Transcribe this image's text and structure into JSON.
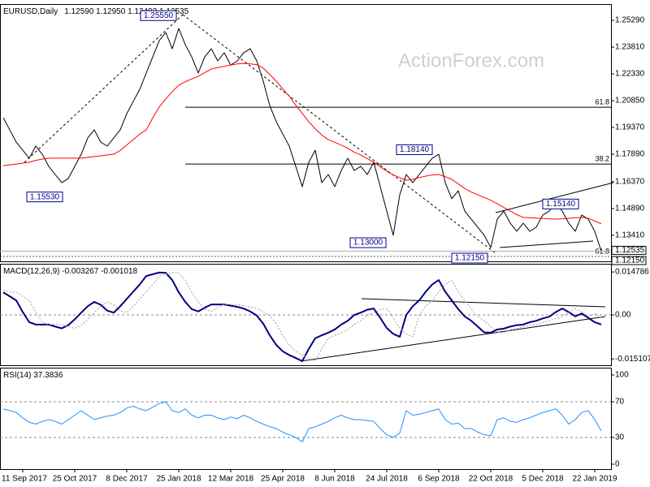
{
  "chart_data": [
    {
      "type": "line",
      "title": "EURUSD,Daily",
      "subtitle": "1.12590 1.12950 1.12492 1.12535",
      "watermark": "ActionForex.com",
      "ylim": [
        1.1197,
        1.2619
      ],
      "yticks": [
        {
          "value": 1.2529,
          "label": "1.25290"
        },
        {
          "value": 1.2381,
          "label": "1.23810"
        },
        {
          "value": 1.2233,
          "label": "1.22330"
        },
        {
          "value": 1.2085,
          "label": "1.20850"
        },
        {
          "value": 1.1937,
          "label": "1.19370"
        },
        {
          "value": 1.1789,
          "label": "1.17890"
        },
        {
          "value": 1.1637,
          "label": "1.16370"
        },
        {
          "value": 1.1489,
          "label": "1.14890"
        },
        {
          "value": 1.1341,
          "label": "1.13410"
        }
      ],
      "price_markers": [
        {
          "value": 1.12535,
          "label": "1.12535"
        },
        {
          "value": 1.1215,
          "label": "1.12150"
        }
      ],
      "annotations": [
        {
          "value": 1.2555,
          "label": "1.25550"
        },
        {
          "value": 1.1553,
          "label": "1.15530"
        },
        {
          "value": 1.13,
          "label": "1.13000"
        },
        {
          "value": 1.1215,
          "label": "1.12150"
        },
        {
          "value": 1.1814,
          "label": "1.18140"
        },
        {
          "value": 1.1514,
          "label": "1.15140"
        }
      ],
      "fib_levels": [
        {
          "value": 1.2049,
          "label": "61.8"
        },
        {
          "value": 1.1735,
          "label": "38.2"
        },
        {
          "value": 1.1224,
          "label": "61.8"
        }
      ],
      "series": [
        {
          "color": "#000000",
          "values": [
            1.1991,
            1.1924,
            1.1856,
            1.1811,
            1.1767,
            1.1834,
            1.1789,
            1.1722,
            1.1677,
            1.1632,
            1.1655,
            1.1722,
            1.1789,
            1.1879,
            1.1924,
            1.1856,
            1.1834,
            1.1879,
            1.1924,
            1.2013,
            1.2081,
            1.2148,
            1.2238,
            1.2327,
            1.2417,
            1.2462,
            1.2372,
            1.2484,
            1.2395,
            1.2327,
            1.2238,
            1.2327,
            1.2372,
            1.2305,
            1.235,
            1.2282,
            1.2305,
            1.235,
            1.2372,
            1.2305,
            1.2193,
            1.2058,
            1.1969,
            1.1901,
            1.1834,
            1.1722,
            1.161,
            1.1744,
            1.1811,
            1.1632,
            1.1677,
            1.161,
            1.1699,
            1.1767,
            1.1699,
            1.1722,
            1.1677,
            1.1744,
            1.161,
            1.1475,
            1.1341,
            1.1565,
            1.1677,
            1.1632,
            1.1677,
            1.1722,
            1.1767,
            1.1789,
            1.1632,
            1.1543,
            1.1587,
            1.1475,
            1.143,
            1.1386,
            1.1341,
            1.1273,
            1.143,
            1.1475,
            1.1408,
            1.1363,
            1.1408,
            1.1363,
            1.1386,
            1.1453,
            1.1475,
            1.152,
            1.1475,
            1.1408,
            1.1363,
            1.1453,
            1.143,
            1.1363,
            1.12535
          ]
        },
        {
          "color": "#ff0000",
          "values": [
            1.1725,
            1.173,
            1.1735,
            1.174,
            1.1745,
            1.1755,
            1.1762,
            1.1767,
            1.1767,
            1.1767,
            1.1767,
            1.1767,
            1.1767,
            1.1772,
            1.1776,
            1.178,
            1.1785,
            1.1789,
            1.181,
            1.184,
            1.187,
            1.19,
            1.1924,
            1.199,
            1.205,
            1.2095,
            1.2135,
            1.217,
            1.219,
            1.2205,
            1.222,
            1.224,
            1.226,
            1.2268,
            1.2275,
            1.2282,
            1.2288,
            1.2291,
            1.2288,
            1.2284,
            1.2265,
            1.223,
            1.2193,
            1.215,
            1.211,
            1.206,
            1.2015,
            1.1969,
            1.193,
            1.1895,
            1.187,
            1.1855,
            1.184,
            1.1822,
            1.18,
            1.1785,
            1.1765,
            1.1745,
            1.172,
            1.1695,
            1.1675,
            1.166,
            1.1645,
            1.165,
            1.166,
            1.1668,
            1.1675,
            1.1677,
            1.1665,
            1.165,
            1.1625,
            1.16,
            1.158,
            1.1565,
            1.155,
            1.1535,
            1.1515,
            1.1495,
            1.1475,
            1.1455,
            1.144,
            1.1438,
            1.1436,
            1.1434,
            1.1432,
            1.143,
            1.1432,
            1.1435,
            1.1438,
            1.144,
            1.1435,
            1.142,
            1.1405
          ]
        }
      ]
    },
    {
      "type": "line",
      "title": "MACD(12,26,9) -0.003267 -0.001018",
      "ylim": [
        -0.0173,
        0.0176
      ],
      "yticks": [
        0.014786,
        {
          "value": 0,
          "label": "0.00"
        },
        -0.015107
      ],
      "reference_lines": [
        0
      ],
      "series": [
        {
          "color": "#00007f",
          "width": 2,
          "values": [
            0.0078,
            0.0064,
            0.005,
            0.001,
            -0.0025,
            -0.0033,
            -0.0033,
            -0.0033,
            -0.004,
            -0.0046,
            -0.0035,
            -0.0015,
            0.0008,
            0.003,
            0.0045,
            0.0035,
            0.0015,
            0.0008,
            0.003,
            0.0055,
            0.008,
            0.0105,
            0.0134,
            0.014,
            0.0146,
            0.0145,
            0.012,
            0.0078,
            0.0045,
            0.002,
            0.0012,
            0.0025,
            0.0036,
            0.0036,
            0.0036,
            0.0032,
            0.0028,
            0.0022,
            0.0012,
            -0.0002,
            -0.003,
            -0.007,
            -0.0103,
            -0.0125,
            -0.0138,
            -0.0148,
            -0.0159,
            -0.0117,
            -0.008,
            -0.007,
            -0.0061,
            -0.005,
            -0.0033,
            -0.002,
            0,
            0.0008,
            0.0018,
            0.0022,
            -0.001,
            -0.0045,
            -0.0065,
            -0.0075,
            0,
            0.003,
            0.005,
            0.008,
            0.0105,
            0.012,
            0.008,
            0.005,
            0.002,
            -0.0005,
            -0.002,
            -0.004,
            -0.006,
            -0.0061,
            -0.005,
            -0.0047,
            -0.004,
            -0.0035,
            -0.0033,
            -0.0025,
            -0.002,
            -0.0012,
            -0.0006,
            0.001,
            0.0022,
            0.001,
            -0.0005,
            0.0005,
            -0.001,
            -0.0025,
            -0.0033
          ]
        },
        {
          "color": "#a0a0a0",
          "width": 1,
          "style": "dotted",
          "values": [
            0.0085,
            0.008,
            0.0078,
            0.0064,
            0.005,
            0.001,
            -0.0025,
            -0.0033,
            -0.0033,
            -0.0033,
            -0.004,
            -0.0046,
            -0.0035,
            -0.0015,
            0.0008,
            0.003,
            0.0045,
            0.0035,
            0.0015,
            0.0008,
            0.003,
            0.0055,
            0.008,
            0.0105,
            0.0134,
            0.014,
            0.0146,
            0.0145,
            0.012,
            0.0078,
            0.0045,
            0.002,
            0.0012,
            0.0025,
            0.0036,
            0.0036,
            0.0036,
            0.0032,
            0.0028,
            0.0022,
            0.0012,
            -0.0002,
            -0.003,
            -0.007,
            -0.0103,
            -0.0125,
            -0.0138,
            -0.0148,
            -0.0159,
            -0.0117,
            -0.008,
            -0.007,
            -0.0061,
            -0.005,
            -0.0033,
            -0.002,
            0,
            0.0008,
            0.0018,
            0.0022,
            -0.001,
            -0.0045,
            -0.0065,
            -0.0075,
            0,
            0.003,
            0.005,
            0.008,
            0.0105,
            0.012,
            0.008,
            0.005,
            0.002,
            -0.0005,
            -0.002,
            -0.004,
            -0.006,
            -0.0061,
            -0.005,
            -0.0047,
            -0.004,
            -0.0035,
            -0.0033,
            -0.0025,
            -0.002,
            -0.0012,
            -0.0006,
            0.001,
            0.0022,
            0.001,
            -0.0005,
            0.0005,
            -0.001
          ]
        }
      ]
    },
    {
      "type": "line",
      "title": "RSI(14) 37.3836",
      "ylim": [
        -5.5,
        108.2
      ],
      "yticks": [
        100,
        70,
        30,
        0
      ],
      "reference_lines": [
        70,
        30
      ],
      "categories": [
        null,
        null,
        null,
        "11 Sep 2017",
        null,
        null,
        null,
        null,
        null,
        null,
        null,
        "25 Oct 2017",
        null,
        null,
        null,
        null,
        null,
        null,
        null,
        "8 Dec 2017",
        null,
        null,
        null,
        null,
        null,
        null,
        null,
        "25 Jan 2018",
        null,
        null,
        null,
        null,
        null,
        null,
        null,
        "12 Mar 2018",
        null,
        null,
        null,
        null,
        null,
        null,
        null,
        "25 Apr 2018",
        null,
        null,
        null,
        null,
        null,
        null,
        null,
        "8 Jun 2018",
        null,
        null,
        null,
        null,
        null,
        null,
        null,
        "24 Jul 2018",
        null,
        null,
        null,
        null,
        null,
        null,
        null,
        "6 Sep 2018",
        null,
        null,
        null,
        null,
        null,
        null,
        null,
        "22 Oct 2018",
        null,
        null,
        null,
        null,
        null,
        null,
        null,
        "5 Dec 2018",
        null,
        null,
        null,
        null,
        null,
        null,
        null,
        "22 Jan 2019",
        null
      ],
      "series": [
        {
          "color": "#1e90ff",
          "width": 1,
          "values": [
            62,
            60,
            58,
            52,
            47,
            45,
            48,
            50,
            48,
            45,
            50,
            55,
            60,
            55,
            50,
            52,
            54,
            55,
            58,
            63,
            65,
            62,
            60,
            64,
            68,
            70,
            60,
            58,
            62,
            55,
            52,
            55,
            55,
            52,
            50,
            53,
            51,
            55,
            52,
            48,
            45,
            42,
            40,
            36,
            33,
            30,
            25,
            40,
            42,
            45,
            48,
            52,
            55,
            52,
            50,
            50,
            49,
            48,
            40,
            33,
            30,
            35,
            60,
            55,
            56,
            58,
            60,
            62,
            50,
            45,
            46,
            40,
            40,
            36,
            33,
            32,
            50,
            52,
            48,
            47,
            50,
            52,
            55,
            58,
            60,
            62,
            55,
            45,
            50,
            58,
            60,
            50,
            37.3836
          ]
        }
      ]
    }
  ]
}
